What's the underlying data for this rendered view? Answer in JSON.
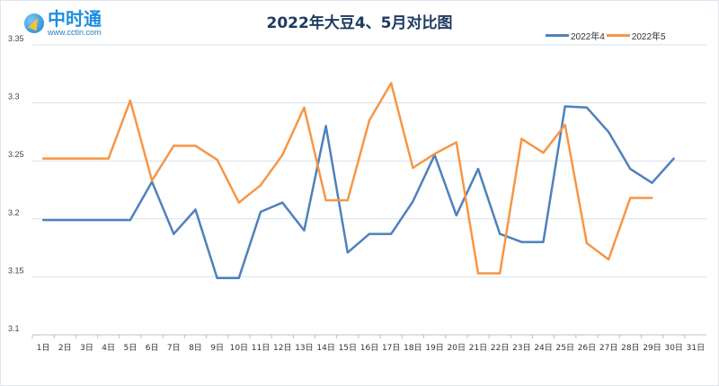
{
  "logo": {
    "name": "中时通",
    "url": "www.cctin.com"
  },
  "chart_data": {
    "type": "line",
    "title": "2022年大豆4、5月对比图",
    "xlabel": "",
    "ylabel": "",
    "categories": [
      "1日",
      "2日",
      "3日",
      "4日",
      "5日",
      "6日",
      "7日",
      "8日",
      "9日",
      "10日",
      "11日",
      "12日",
      "13日",
      "14日",
      "15日",
      "16日",
      "17日",
      "18日",
      "19日",
      "20日",
      "21日",
      "22日",
      "23日",
      "24日",
      "25日",
      "26日",
      "27日",
      "28日",
      "29日",
      "30日",
      "31日"
    ],
    "yticks": [
      "3.1",
      "3.15",
      "3.2",
      "3.25",
      "3.3",
      "3.35"
    ],
    "ylim": [
      3.1,
      3.35
    ],
    "grid": true,
    "legend_position": "top-right",
    "series": [
      {
        "name": "2022年4",
        "color": "#4f81bd",
        "values": [
          3.199,
          3.199,
          3.199,
          3.199,
          3.199,
          3.232,
          3.187,
          3.208,
          3.149,
          3.149,
          3.206,
          3.214,
          3.19,
          3.28,
          3.171,
          3.187,
          3.187,
          3.215,
          3.255,
          3.203,
          3.243,
          3.187,
          3.18,
          3.18,
          3.297,
          3.296,
          3.275,
          3.243,
          3.231,
          3.252,
          null
        ]
      },
      {
        "name": "2022年5",
        "color": "#f79646",
        "values": [
          3.252,
          3.252,
          3.252,
          3.252,
          3.302,
          3.233,
          3.263,
          3.263,
          3.251,
          3.214,
          3.229,
          3.255,
          3.296,
          3.216,
          3.216,
          3.285,
          3.317,
          3.244,
          3.256,
          3.266,
          3.153,
          3.153,
          3.269,
          3.257,
          3.281,
          3.179,
          3.165,
          3.218,
          3.218,
          null,
          null
        ]
      }
    ]
  }
}
